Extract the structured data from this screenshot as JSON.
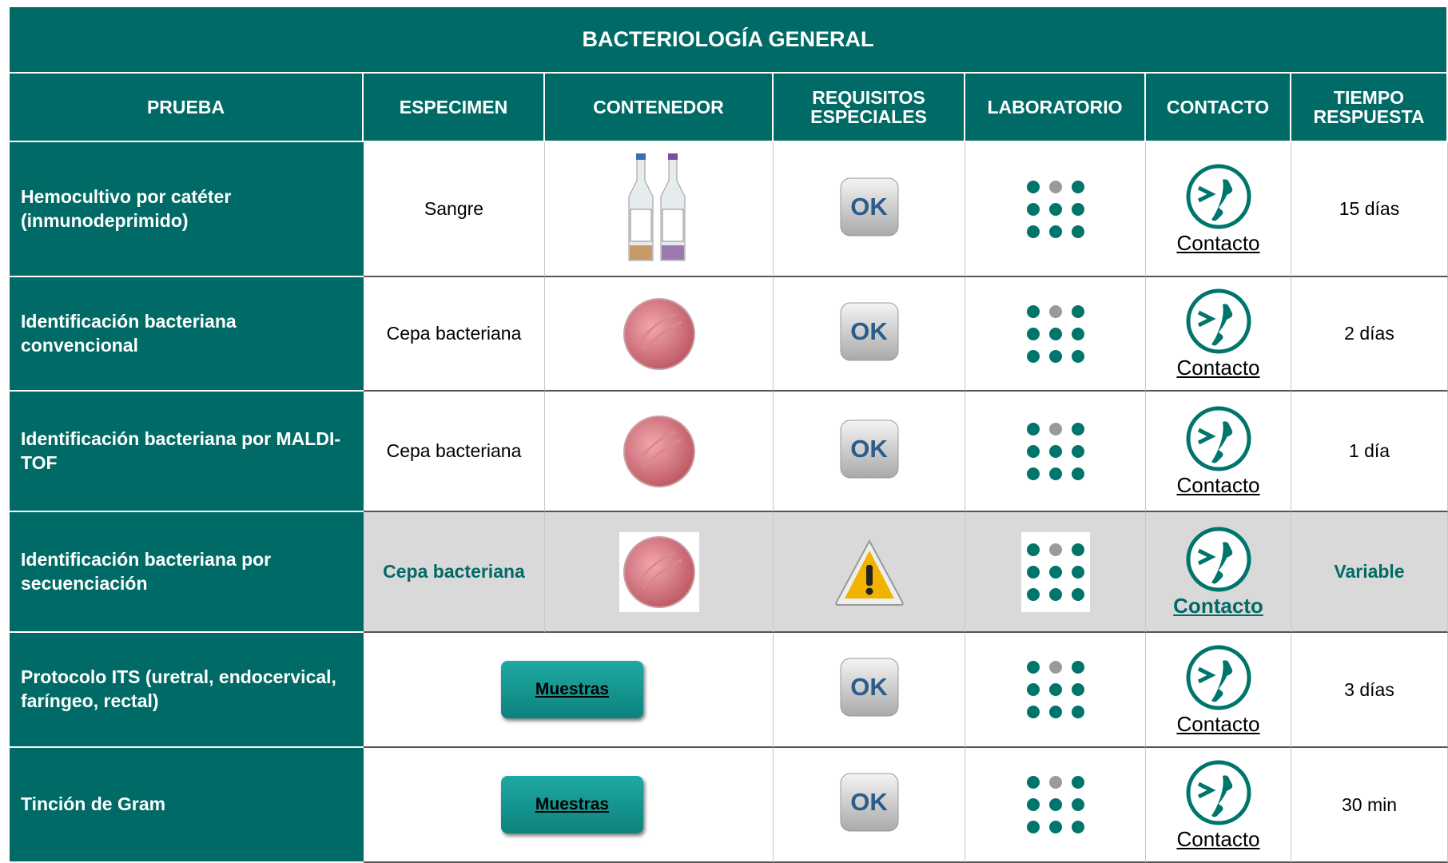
{
  "title": "BACTERIOLOGÍA GENERAL",
  "headers": [
    "PRUEBA",
    "ESPECIMEN",
    "CONTENEDOR",
    "REQUISITOS ESPECIALES",
    "LABORATORIO",
    "CONTACTO",
    "TIEMPO RESPUESTA"
  ],
  "rows": [
    {
      "prueba": "Hemocultivo por catéter (inmunodeprimido)",
      "especimen": "Sangre",
      "requisito": "OK",
      "contacto": "Contacto",
      "tiempo": "15 días"
    },
    {
      "prueba": "Identificación bacteriana convencional",
      "especimen": "Cepa bacteriana",
      "requisito": "OK",
      "contacto": "Contacto",
      "tiempo": "2 días"
    },
    {
      "prueba": "Identificación bacteriana por MALDI-TOF",
      "especimen": "Cepa bacteriana",
      "requisito": "OK",
      "contacto": "Contacto",
      "tiempo": "1 día"
    },
    {
      "prueba": "Identificación bacteriana por secuenciación",
      "especimen": "Cepa bacteriana",
      "contacto": "Contacto",
      "tiempo": "Variable",
      "highlight": true
    },
    {
      "prueba": "Protocolo ITS (uretral, endocervical, faríngeo, rectal)",
      "muestras": "Muestras",
      "requisito": "OK",
      "contacto": "Contacto",
      "tiempo": "3 días"
    },
    {
      "prueba": "Tinción de Gram",
      "muestras": "Muestras",
      "requisito": "OK",
      "contacto": "Contacto",
      "tiempo": "30 min"
    }
  ]
}
